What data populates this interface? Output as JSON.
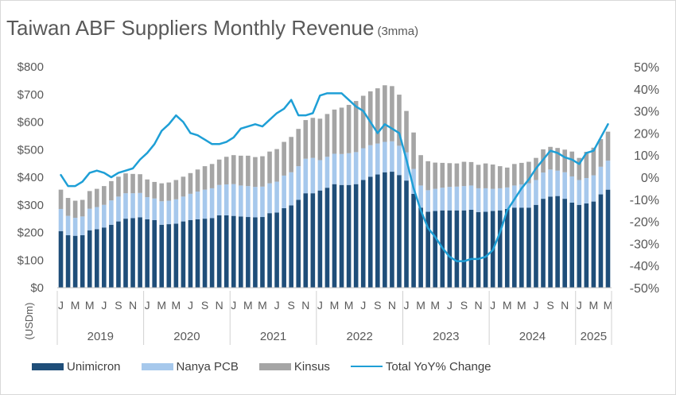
{
  "title": "Taiwan ABF Suppliers Monthly Revenue",
  "subtitle": "(3mma)",
  "colors": {
    "unimicron": "#1f4e79",
    "nanya": "#a6c8ec",
    "kinsus": "#a5a5a5",
    "yoy": "#1e9fd6",
    "text": "#595959",
    "grid": "#d9d9d9"
  },
  "legend": {
    "unimicron": "Unimicron",
    "nanya": "Nanya PCB",
    "kinsus": "Kinsus",
    "yoy": "Total YoY% Change"
  },
  "chart_data": {
    "type": "bar",
    "stacked": true,
    "title": "Taiwan ABF Suppliers Monthly Revenue (3mma)",
    "ylabel": "(USDm)",
    "ylim": [
      0,
      800
    ],
    "y_ticks": [
      "$0",
      "$100",
      "$200",
      "$300",
      "$400",
      "$500",
      "$600",
      "$700",
      "$800"
    ],
    "y2lim": [
      -50,
      50
    ],
    "y2_ticks": [
      "-50%",
      "-40%",
      "-30%",
      "-20%",
      "-10%",
      "0%",
      "10%",
      "20%",
      "30%",
      "40%",
      "50%"
    ],
    "grid": false,
    "legend_position": "bottom",
    "month_labels": [
      "J",
      "M",
      "M",
      "J",
      "S",
      "N"
    ],
    "years": [
      "2019",
      "2020",
      "2021",
      "2022",
      "2023",
      "2024",
      "2025"
    ],
    "months_per_year": [
      12,
      12,
      12,
      12,
      12,
      12,
      5
    ],
    "series": [
      {
        "name": "Unimicron",
        "values": [
          205,
          190,
          188,
          190,
          208,
          212,
          218,
          228,
          240,
          250,
          252,
          255,
          248,
          245,
          228,
          230,
          232,
          240,
          245,
          248,
          250,
          252,
          262,
          262,
          260,
          258,
          256,
          255,
          256,
          270,
          272,
          288,
          298,
          318,
          342,
          342,
          352,
          362,
          375,
          372,
          372,
          375,
          390,
          402,
          410,
          418,
          420,
          408,
          388,
          340,
          290,
          275,
          278,
          280,
          280,
          280,
          280,
          282,
          274,
          275,
          278,
          280,
          285,
          290,
          290,
          290,
          300,
          322,
          330,
          332,
          322,
          308,
          300,
          305,
          312,
          338,
          355
        ]
      },
      {
        "name": "Nanya PCB",
        "values": [
          80,
          70,
          65,
          68,
          78,
          80,
          82,
          88,
          90,
          92,
          90,
          88,
          80,
          78,
          85,
          85,
          88,
          90,
          95,
          100,
          105,
          108,
          110,
          112,
          115,
          112,
          112,
          110,
          110,
          108,
          112,
          118,
          120,
          122,
          125,
          128,
          110,
          112,
          110,
          112,
          115,
          116,
          115,
          114,
          112,
          110,
          110,
          106,
          102,
          90,
          80,
          78,
          80,
          82,
          85,
          86,
          88,
          88,
          86,
          85,
          80,
          80,
          78,
          80,
          84,
          88,
          90,
          95,
          98,
          92,
          96,
          95,
          90,
          92,
          95,
          100,
          105
        ]
      },
      {
        "name": "Kinsus",
        "values": [
          70,
          65,
          62,
          60,
          64,
          66,
          68,
          70,
          72,
          72,
          70,
          68,
          64,
          60,
          65,
          66,
          70,
          72,
          75,
          80,
          85,
          88,
          92,
          100,
          105,
          108,
          110,
          108,
          110,
          115,
          118,
          122,
          128,
          135,
          140,
          145,
          150,
          155,
          160,
          168,
          175,
          185,
          190,
          195,
          200,
          205,
          200,
          185,
          150,
          132,
          110,
          105,
          95,
          90,
          86,
          84,
          88,
          85,
          85,
          90,
          88,
          80,
          72,
          78,
          78,
          78,
          80,
          84,
          82,
          82,
          82,
          90,
          80,
          95,
          100,
          100,
          105
        ]
      }
    ],
    "yoy": {
      "name": "Total YoY% Change",
      "axis": "secondary",
      "values": [
        1,
        -4,
        -4,
        -2,
        2,
        3,
        2,
        0,
        2,
        3,
        4,
        8,
        11,
        15,
        21,
        24,
        28,
        25,
        20,
        19,
        17,
        15,
        15,
        16,
        18,
        22,
        23,
        24,
        23,
        26,
        29,
        31,
        35,
        28,
        28,
        29,
        37,
        38,
        38,
        38,
        35,
        32,
        30,
        25,
        20,
        24,
        22,
        20,
        8,
        -5,
        -15,
        -23,
        -27,
        -32,
        -36,
        -38,
        -38,
        -37,
        -37,
        -36,
        -33,
        -25,
        -15,
        -10,
        -5,
        -1,
        4,
        8,
        12,
        11,
        9,
        8,
        6,
        11,
        12,
        18,
        24
      ]
    }
  }
}
